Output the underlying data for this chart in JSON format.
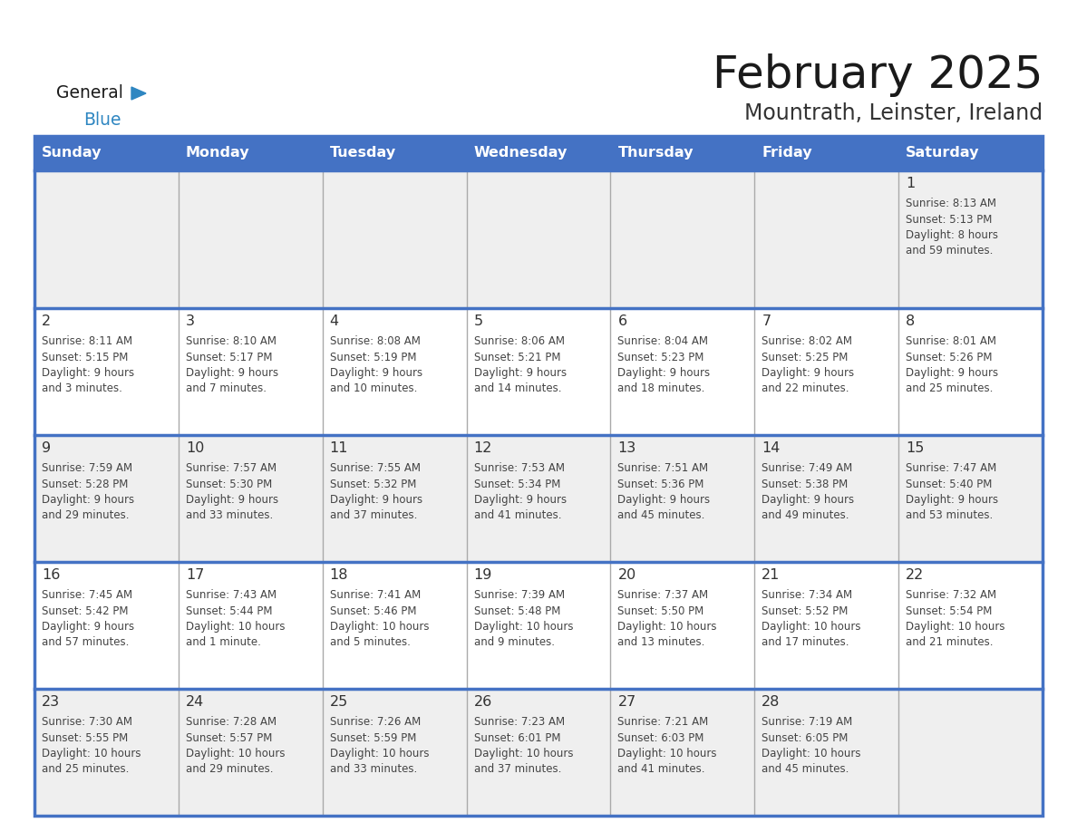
{
  "title": "February 2025",
  "subtitle": "Mountrath, Leinster, Ireland",
  "days_of_week": [
    "Sunday",
    "Monday",
    "Tuesday",
    "Wednesday",
    "Thursday",
    "Friday",
    "Saturday"
  ],
  "header_bg": "#4472C4",
  "header_text": "#FFFFFF",
  "row1_bg": "#EFEFEF",
  "row_bg_light": "#EFEFEF",
  "row_bg_white": "#FFFFFF",
  "cell_border_color": "#4472C4",
  "cell_divider_color": "#AAAAAA",
  "day_text_color": "#333333",
  "info_text_color": "#444444",
  "title_color": "#1a1a1a",
  "subtitle_color": "#333333",
  "generalblue_black": "#1a1a1a",
  "generalblue_blue": "#2E86C1",
  "logo_triangle_color": "#2E86C1",
  "calendar_data": [
    [
      {
        "day": "",
        "sunrise": "",
        "sunset": "",
        "daylight": ""
      },
      {
        "day": "",
        "sunrise": "",
        "sunset": "",
        "daylight": ""
      },
      {
        "day": "",
        "sunrise": "",
        "sunset": "",
        "daylight": ""
      },
      {
        "day": "",
        "sunrise": "",
        "sunset": "",
        "daylight": ""
      },
      {
        "day": "",
        "sunrise": "",
        "sunset": "",
        "daylight": ""
      },
      {
        "day": "",
        "sunrise": "",
        "sunset": "",
        "daylight": ""
      },
      {
        "day": "1",
        "sunrise": "8:13 AM",
        "sunset": "5:13 PM",
        "daylight": "8 hours\nand 59 minutes."
      }
    ],
    [
      {
        "day": "2",
        "sunrise": "8:11 AM",
        "sunset": "5:15 PM",
        "daylight": "9 hours\nand 3 minutes."
      },
      {
        "day": "3",
        "sunrise": "8:10 AM",
        "sunset": "5:17 PM",
        "daylight": "9 hours\nand 7 minutes."
      },
      {
        "day": "4",
        "sunrise": "8:08 AM",
        "sunset": "5:19 PM",
        "daylight": "9 hours\nand 10 minutes."
      },
      {
        "day": "5",
        "sunrise": "8:06 AM",
        "sunset": "5:21 PM",
        "daylight": "9 hours\nand 14 minutes."
      },
      {
        "day": "6",
        "sunrise": "8:04 AM",
        "sunset": "5:23 PM",
        "daylight": "9 hours\nand 18 minutes."
      },
      {
        "day": "7",
        "sunrise": "8:02 AM",
        "sunset": "5:25 PM",
        "daylight": "9 hours\nand 22 minutes."
      },
      {
        "day": "8",
        "sunrise": "8:01 AM",
        "sunset": "5:26 PM",
        "daylight": "9 hours\nand 25 minutes."
      }
    ],
    [
      {
        "day": "9",
        "sunrise": "7:59 AM",
        "sunset": "5:28 PM",
        "daylight": "9 hours\nand 29 minutes."
      },
      {
        "day": "10",
        "sunrise": "7:57 AM",
        "sunset": "5:30 PM",
        "daylight": "9 hours\nand 33 minutes."
      },
      {
        "day": "11",
        "sunrise": "7:55 AM",
        "sunset": "5:32 PM",
        "daylight": "9 hours\nand 37 minutes."
      },
      {
        "day": "12",
        "sunrise": "7:53 AM",
        "sunset": "5:34 PM",
        "daylight": "9 hours\nand 41 minutes."
      },
      {
        "day": "13",
        "sunrise": "7:51 AM",
        "sunset": "5:36 PM",
        "daylight": "9 hours\nand 45 minutes."
      },
      {
        "day": "14",
        "sunrise": "7:49 AM",
        "sunset": "5:38 PM",
        "daylight": "9 hours\nand 49 minutes."
      },
      {
        "day": "15",
        "sunrise": "7:47 AM",
        "sunset": "5:40 PM",
        "daylight": "9 hours\nand 53 minutes."
      }
    ],
    [
      {
        "day": "16",
        "sunrise": "7:45 AM",
        "sunset": "5:42 PM",
        "daylight": "9 hours\nand 57 minutes."
      },
      {
        "day": "17",
        "sunrise": "7:43 AM",
        "sunset": "5:44 PM",
        "daylight": "10 hours\nand 1 minute."
      },
      {
        "day": "18",
        "sunrise": "7:41 AM",
        "sunset": "5:46 PM",
        "daylight": "10 hours\nand 5 minutes."
      },
      {
        "day": "19",
        "sunrise": "7:39 AM",
        "sunset": "5:48 PM",
        "daylight": "10 hours\nand 9 minutes."
      },
      {
        "day": "20",
        "sunrise": "7:37 AM",
        "sunset": "5:50 PM",
        "daylight": "10 hours\nand 13 minutes."
      },
      {
        "day": "21",
        "sunrise": "7:34 AM",
        "sunset": "5:52 PM",
        "daylight": "10 hours\nand 17 minutes."
      },
      {
        "day": "22",
        "sunrise": "7:32 AM",
        "sunset": "5:54 PM",
        "daylight": "10 hours\nand 21 minutes."
      }
    ],
    [
      {
        "day": "23",
        "sunrise": "7:30 AM",
        "sunset": "5:55 PM",
        "daylight": "10 hours\nand 25 minutes."
      },
      {
        "day": "24",
        "sunrise": "7:28 AM",
        "sunset": "5:57 PM",
        "daylight": "10 hours\nand 29 minutes."
      },
      {
        "day": "25",
        "sunrise": "7:26 AM",
        "sunset": "5:59 PM",
        "daylight": "10 hours\nand 33 minutes."
      },
      {
        "day": "26",
        "sunrise": "7:23 AM",
        "sunset": "6:01 PM",
        "daylight": "10 hours\nand 37 minutes."
      },
      {
        "day": "27",
        "sunrise": "7:21 AM",
        "sunset": "6:03 PM",
        "daylight": "10 hours\nand 41 minutes."
      },
      {
        "day": "28",
        "sunrise": "7:19 AM",
        "sunset": "6:05 PM",
        "daylight": "10 hours\nand 45 minutes."
      },
      {
        "day": "",
        "sunrise": "",
        "sunset": "",
        "daylight": ""
      }
    ]
  ]
}
